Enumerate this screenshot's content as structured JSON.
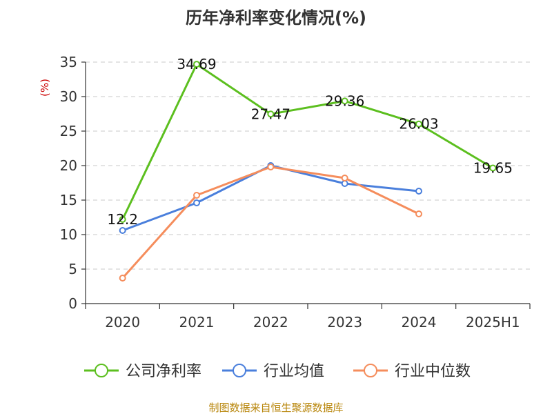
{
  "chart_data": {
    "type": "line",
    "title": "历年净利率变化情况(%)",
    "ylabel": "(%)",
    "categories": [
      "2020",
      "2021",
      "2022",
      "2023",
      "2024",
      "2025H1"
    ],
    "ylim": [
      0,
      35
    ],
    "yticks": [
      "0",
      "5",
      "10",
      "15",
      "20",
      "25",
      "30",
      "35"
    ],
    "grid": true,
    "legend_position": "bottom",
    "series": [
      {
        "name": "公司净利率",
        "color": "#5cbf1f",
        "values": [
          12.2,
          34.69,
          27.47,
          29.36,
          26.03,
          19.65
        ],
        "labels": [
          "12.2",
          "34.69",
          "27.47",
          "29.36",
          "26.03",
          "19.65"
        ]
      },
      {
        "name": "行业均值",
        "color": "#4a7fdc",
        "values": [
          10.6,
          14.6,
          20.0,
          17.4,
          16.3,
          null
        ]
      },
      {
        "name": "行业中位数",
        "color": "#f58d5c",
        "values": [
          3.7,
          15.7,
          19.8,
          18.2,
          13.0,
          null
        ]
      }
    ]
  },
  "footer": {
    "source": "制图数据来自恒生聚源数据库"
  }
}
